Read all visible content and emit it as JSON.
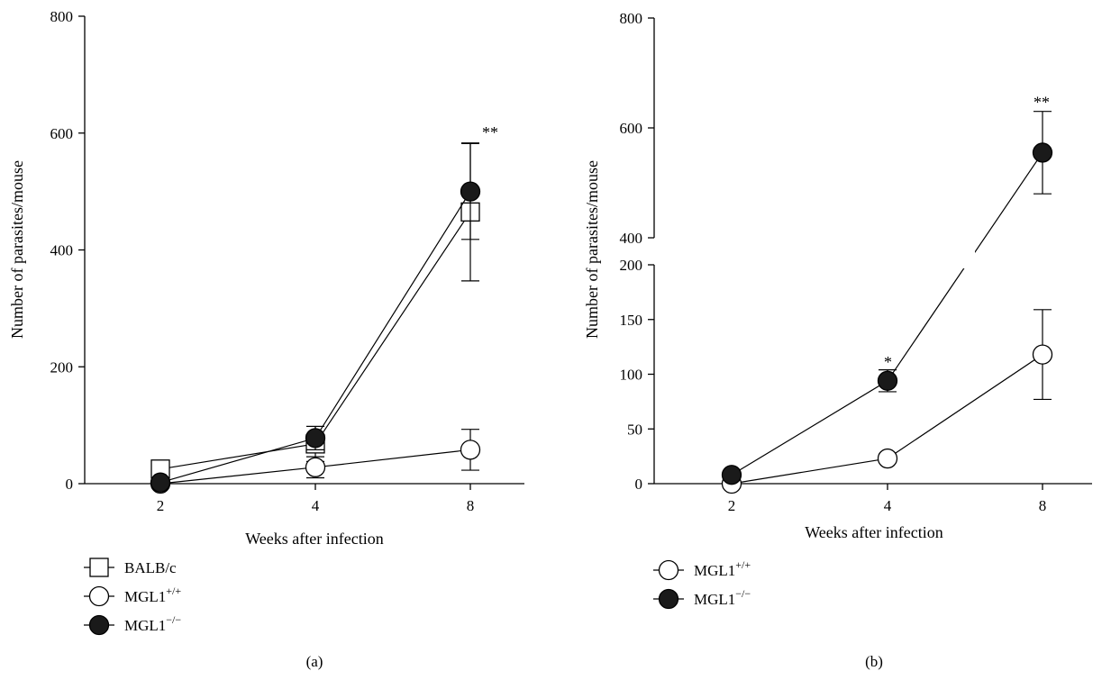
{
  "chart_data": [
    {
      "panel_label": "(a)",
      "type": "line",
      "xlabel": "Weeks after infection",
      "ylabel": "Number of parasites/mouse",
      "x": [
        2,
        4,
        8
      ],
      "x_tick_labels": [
        "2",
        "4",
        "8"
      ],
      "ylim": [
        0,
        800
      ],
      "y_ticks": [
        0,
        200,
        400,
        600,
        800
      ],
      "grid": false,
      "legend_position": "bottom-left",
      "series": [
        {
          "name": "BALB/c",
          "label_base": "BALB/c",
          "label_sup": "",
          "marker": "open-square",
          "values": [
            25,
            68,
            465
          ],
          "error": [
            5,
            30,
            118
          ]
        },
        {
          "name": "MGL1+/+",
          "label_base": "MGL1",
          "label_sup": "+/+",
          "marker": "open-circle",
          "values": [
            0,
            28,
            58
          ],
          "error": [
            0,
            18,
            35
          ]
        },
        {
          "name": "MGL1−/−",
          "label_base": "MGL1",
          "label_sup": "−/−",
          "marker": "filled-circle",
          "values": [
            2,
            78,
            500
          ],
          "error": [
            0,
            20,
            82
          ]
        }
      ],
      "annotations": [
        {
          "text": "**",
          "x": 8,
          "y": 620
        }
      ]
    },
    {
      "panel_label": "(b)",
      "type": "line",
      "xlabel": "Weeks after infection",
      "ylabel": "Number of parasites/mouse",
      "x": [
        2,
        4,
        8
      ],
      "x_tick_labels": [
        "2",
        "4",
        "8"
      ],
      "y_axis_break": {
        "lower_range": [
          0,
          200
        ],
        "upper_range": [
          400,
          800
        ]
      },
      "y_ticks_lower": [
        0,
        50,
        100,
        150,
        200
      ],
      "y_ticks_upper": [
        400,
        600,
        800
      ],
      "grid": false,
      "legend_position": "bottom-left",
      "series": [
        {
          "name": "MGL1+/+",
          "label_base": "MGL1",
          "label_sup": "+/+",
          "marker": "open-circle",
          "values": [
            0,
            23,
            118
          ],
          "error": [
            0,
            0,
            41
          ]
        },
        {
          "name": "MGL1−/−",
          "label_base": "MGL1",
          "label_sup": "−/−",
          "marker": "filled-circle",
          "values": [
            8,
            94,
            555
          ],
          "error": [
            0,
            10,
            75
          ]
        }
      ],
      "annotations": [
        {
          "text": "*",
          "x": 4,
          "y": 108
        },
        {
          "text": "**",
          "x": 8,
          "y": 640
        }
      ]
    }
  ]
}
